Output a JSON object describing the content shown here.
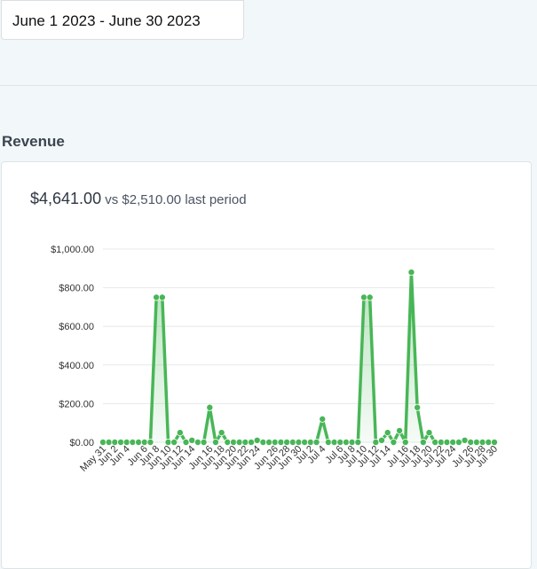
{
  "date_range": {
    "value": "June 1 2023 - June 30 2023"
  },
  "section": {
    "title": "Revenue"
  },
  "summary": {
    "current": "$4,641.00",
    "vs_label": "vs",
    "previous": "$2,510.00",
    "suffix": "last period"
  },
  "colors": {
    "line": "#48b657",
    "fill": "#48b657",
    "grid": "#e6e8eb"
  },
  "chart_data": {
    "type": "area",
    "xlabel": "",
    "ylabel": "",
    "ylim": [
      0,
      1000
    ],
    "yticks": [
      "$0.00",
      "$200.00",
      "$400.00",
      "$600.00",
      "$800.00",
      "$1,000.00"
    ],
    "x_tick_labels": [
      "May 31",
      "Jun 2",
      "Jun 4",
      "Jun 6",
      "Jun 8",
      "Jun 10",
      "Jun 12",
      "Jun 14",
      "Jun 16",
      "Jun 18",
      "Jun 20",
      "Jun 22",
      "Jun 24",
      "Jun 26",
      "Jun 28",
      "Jun 30",
      "Jul 2",
      "Jul 4",
      "Jul 6",
      "Jul 8",
      "Jul 10",
      "Jul 12",
      "Jul 14",
      "Jul 16",
      "Jul 18",
      "Jul 20",
      "Jul 22",
      "Jul 24",
      "Jul 26",
      "Jul 28",
      "Jul 30"
    ],
    "values": [
      0,
      0,
      0,
      0,
      0,
      0,
      0,
      0,
      0,
      750,
      750,
      0,
      0,
      50,
      0,
      10,
      0,
      0,
      180,
      0,
      50,
      0,
      0,
      0,
      0,
      0,
      10,
      0,
      0,
      0,
      0,
      0,
      0,
      0,
      0,
      0,
      0,
      120,
      0,
      0,
      0,
      0,
      0,
      0,
      750,
      750,
      0,
      10,
      50,
      0,
      60,
      0,
      880,
      180,
      0,
      50,
      0,
      0,
      0,
      0,
      0,
      10,
      0,
      0,
      0,
      0,
      0
    ]
  }
}
